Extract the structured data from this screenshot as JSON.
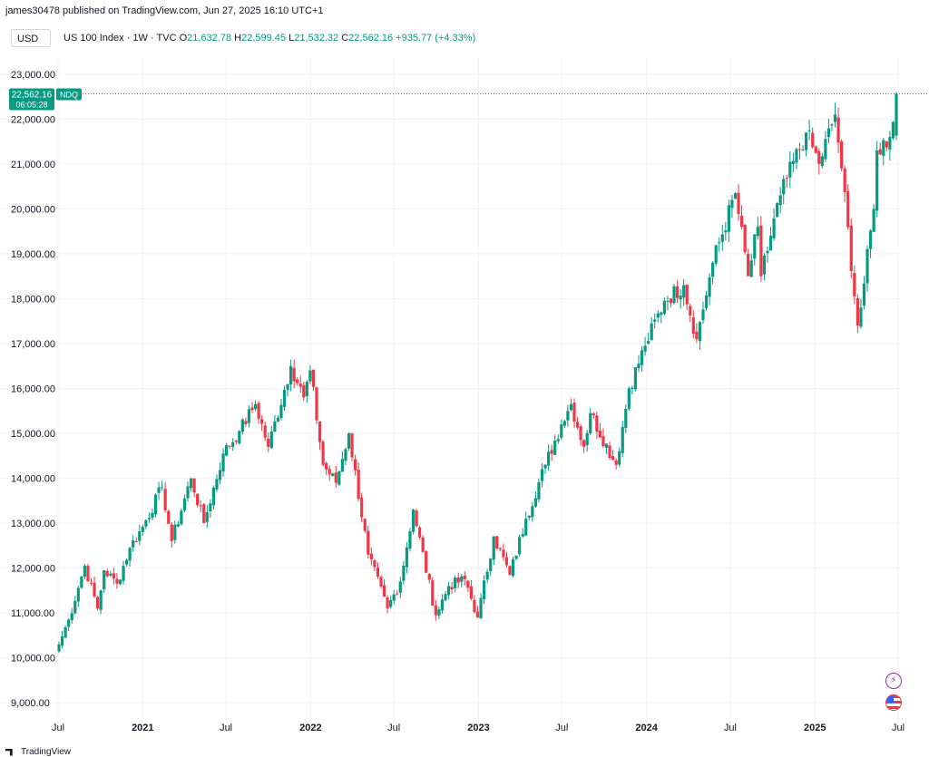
{
  "header": {
    "published_line": "james30478 published on TradingView.com, Jun 27, 2025 16:10 UTC+1"
  },
  "legend": {
    "currency": "USD",
    "symbol": "US 100 Index · 1W · TVC",
    "open_label": "O",
    "open": "21,632.78",
    "high_label": "H",
    "high": "22,599.45",
    "low_label": "L",
    "low": "21,532.32",
    "close_label": "C",
    "close": "22,562.16",
    "change": "+935.77 (+4.33%)"
  },
  "price_tag": {
    "price": "22,562.16",
    "countdown": "06:05:28",
    "symbol": "NDQ"
  },
  "footer": {
    "brand": "TradingView"
  },
  "icons": {
    "events": "lightning-icon",
    "flag": "us-flag-icon"
  },
  "colors": {
    "up": "#089981",
    "down": "#f23645",
    "grid": "#f0f3fa",
    "text": "#131722"
  },
  "chart_data": {
    "type": "candlestick",
    "interval": "1W",
    "ylim": [
      8700,
      23400
    ],
    "y_ticks": [
      9000,
      10000,
      11000,
      12000,
      13000,
      14000,
      15000,
      16000,
      17000,
      18000,
      19000,
      20000,
      21000,
      22000,
      23000
    ],
    "y_tick_labels": [
      "9,000.00",
      "10,000.00",
      "11,000.00",
      "12,000.00",
      "13,000.00",
      "14,000.00",
      "15,000.00",
      "16,000.00",
      "17,000.00",
      "18,000.00",
      "19,000.00",
      "20,000.00",
      "21,000.00",
      "22,000.00",
      "23,000.00"
    ],
    "x_ticks": [
      "2020-07-01",
      "2021-01-01",
      "2021-07-01",
      "2022-01-01",
      "2022-07-01",
      "2023-01-01",
      "2023-07-01",
      "2024-01-01",
      "2024-07-01",
      "2025-01-01",
      "2025-07-01"
    ],
    "x_tick_labels": [
      "Jul",
      "2021",
      "Jul",
      "2022",
      "Jul",
      "2023",
      "Jul",
      "2024",
      "Jul",
      "2025",
      "Jul"
    ],
    "last_price": 22562.16,
    "anchors": [
      [
        "2020-07-03",
        10300
      ],
      [
        "2020-07-24",
        10850
      ],
      [
        "2020-08-28",
        12050
      ],
      [
        "2020-09-25",
        11100
      ],
      [
        "2020-10-09",
        11950
      ],
      [
        "2020-11-06",
        11650
      ],
      [
        "2020-12-04",
        12450
      ],
      [
        "2020-12-31",
        12900
      ],
      [
        "2021-02-12",
        13800
      ],
      [
        "2021-03-05",
        12600
      ],
      [
        "2021-04-16",
        14000
      ],
      [
        "2021-05-14",
        13000
      ],
      [
        "2021-06-25",
        14550
      ],
      [
        "2021-07-30",
        15050
      ],
      [
        "2021-09-03",
        15650
      ],
      [
        "2021-10-01",
        14700
      ],
      [
        "2021-11-19",
        16500
      ],
      [
        "2021-12-17",
        15800
      ],
      [
        "2021-12-31",
        16400
      ],
      [
        "2022-01-28",
        14300
      ],
      [
        "2022-02-25",
        13900
      ],
      [
        "2022-03-25",
        15000
      ],
      [
        "2022-05-06",
        12300
      ],
      [
        "2022-06-17",
        11100
      ],
      [
        "2022-07-15",
        11700
      ],
      [
        "2022-08-12",
        13300
      ],
      [
        "2022-09-30",
        10950
      ],
      [
        "2022-10-28",
        11600
      ],
      [
        "2022-12-02",
        11750
      ],
      [
        "2022-12-30",
        10900
      ],
      [
        "2023-02-03",
        12700
      ],
      [
        "2023-03-10",
        11850
      ],
      [
        "2023-04-14",
        13100
      ],
      [
        "2023-05-26",
        14300
      ],
      [
        "2023-06-30",
        15200
      ],
      [
        "2023-07-21",
        15650
      ],
      [
        "2023-08-18",
        14700
      ],
      [
        "2023-09-01",
        15450
      ],
      [
        "2023-10-27",
        14300
      ],
      [
        "2023-11-24",
        16000
      ],
      [
        "2023-12-29",
        16950
      ],
      [
        "2024-02-09",
        17950
      ],
      [
        "2024-03-22",
        18300
      ],
      [
        "2024-04-19",
        17100
      ],
      [
        "2024-05-24",
        18800
      ],
      [
        "2024-07-12",
        20350
      ],
      [
        "2024-08-09",
        18500
      ],
      [
        "2024-08-30",
        19600
      ],
      [
        "2024-09-06",
        18500
      ],
      [
        "2024-10-18",
        20300
      ],
      [
        "2024-12-13",
        21700
      ],
      [
        "2025-01-10",
        21000
      ],
      [
        "2025-02-14",
        22100
      ],
      [
        "2025-02-28",
        20900
      ],
      [
        "2025-04-04",
        17400
      ],
      [
        "2025-04-11",
        17800
      ],
      [
        "2025-05-09",
        20000
      ],
      [
        "2025-05-16",
        21300
      ],
      [
        "2025-06-13",
        21600
      ],
      [
        "2025-06-27",
        22562.16
      ]
    ],
    "last_candle": {
      "open": 21632.78,
      "high": 22599.45,
      "low": 21532.32,
      "close": 22562.16
    }
  }
}
